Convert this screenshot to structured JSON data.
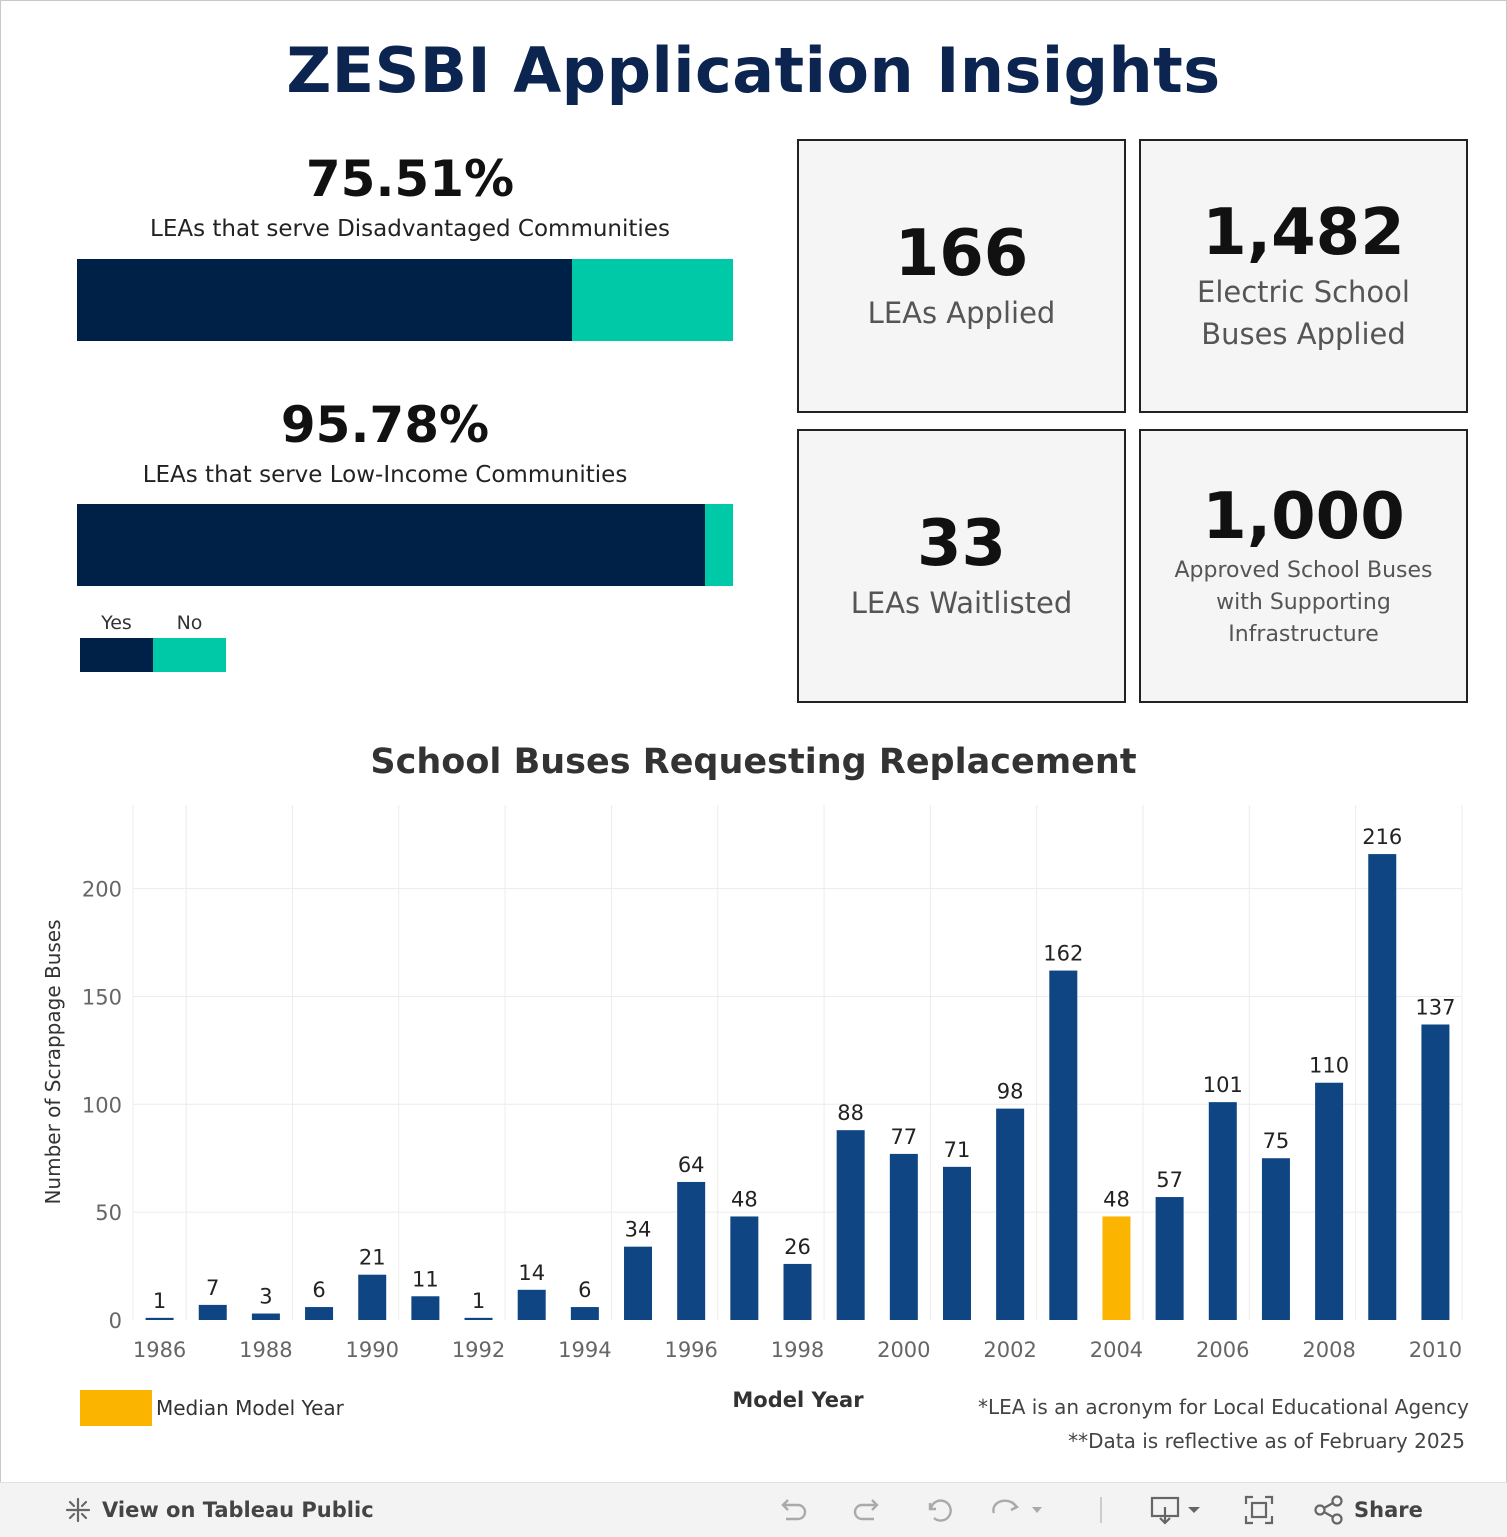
{
  "dashboard": {
    "title": "ZESBI Application Insights"
  },
  "disadvantaged": {
    "percent": "75.51%",
    "label": "LEAs that serve Disadvantaged Communities",
    "yes_share": 0.7551
  },
  "low_income": {
    "percent": "95.78%",
    "label": "LEAs that serve Low-Income Communities",
    "yes_share": 0.9578
  },
  "yes_no_legend": {
    "yes_label": "Yes",
    "no_label": "No",
    "yes_color": "#002147",
    "no_color": "#00c9a7"
  },
  "kpis": {
    "leas_applied": {
      "value": "166",
      "label": "LEAs Applied"
    },
    "buses_applied": {
      "value": "1,482",
      "label": "Electric School Buses Applied"
    },
    "leas_waitlisted": {
      "value": "33",
      "label": "LEAs Waitlisted"
    },
    "approved_buses": {
      "value": "1,000",
      "label": "Approved School Buses with Supporting Infrastructure"
    }
  },
  "chart_data": {
    "type": "bar",
    "title": "School Buses Requesting Replacement",
    "xlabel": "Model Year",
    "ylabel": "Number of Scrappage Buses",
    "categories": [
      1986,
      1987,
      1988,
      1989,
      1990,
      1991,
      1992,
      1993,
      1994,
      1995,
      1996,
      1997,
      1998,
      1999,
      2000,
      2001,
      2002,
      2003,
      2004,
      2005,
      2006,
      2007,
      2008,
      2009,
      2010
    ],
    "values": [
      1,
      7,
      3,
      6,
      21,
      11,
      1,
      14,
      6,
      34,
      64,
      48,
      26,
      88,
      77,
      71,
      98,
      162,
      48,
      57,
      101,
      75,
      110,
      216,
      137
    ],
    "x_tick_labels": [
      "1986",
      "1988",
      "1990",
      "1992",
      "1994",
      "1996",
      "1998",
      "2000",
      "2002",
      "2004",
      "2006",
      "2008",
      "2010"
    ],
    "y_ticks": [
      0,
      50,
      100,
      150,
      200
    ],
    "ylim": [
      0,
      230
    ],
    "highlight_category": 2004,
    "bar_color": "#0f4582",
    "highlight_color": "#fbb400",
    "grid": true
  },
  "median_legend": {
    "label": "Median Model Year",
    "color": "#fbb400"
  },
  "footnotes": {
    "lea": "*LEA is an acronym for Local Educational Agency",
    "data_date": "**Data is reflective as of February 2025"
  },
  "toolbar": {
    "view_label": "View on Tableau Public",
    "share_label": "Share"
  }
}
